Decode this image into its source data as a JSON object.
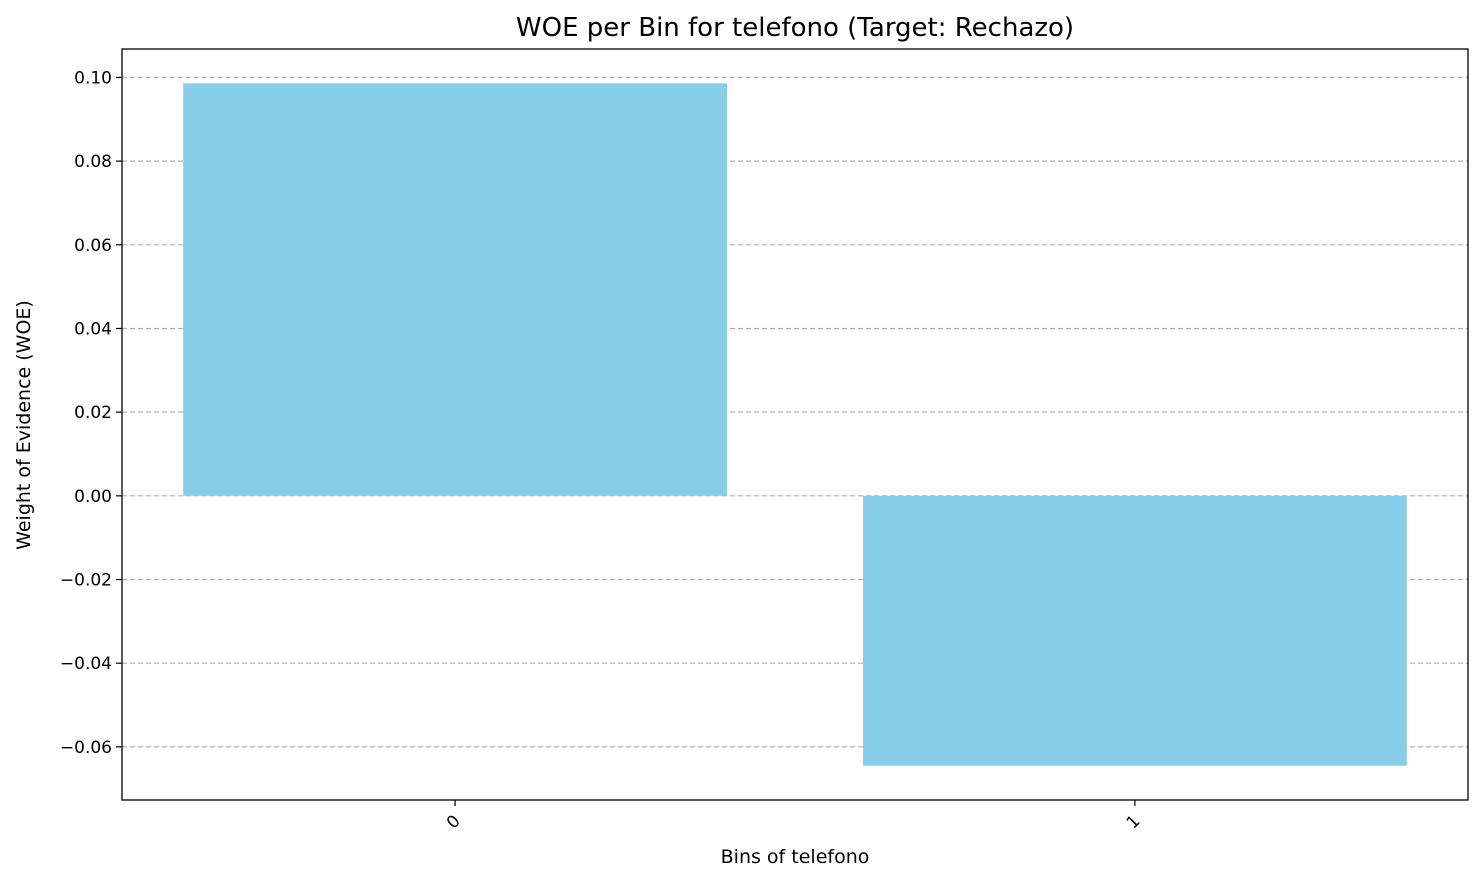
{
  "chart_data": {
    "type": "bar",
    "title": "WOE per Bin for telefono (Target: Rechazo)",
    "xlabel": "Bins of telefono",
    "ylabel": "Weight of Evidence (WOE)",
    "categories": [
      "0",
      "1"
    ],
    "values": [
      0.0986,
      -0.0645
    ],
    "ylim": [
      -0.0727,
      0.1068
    ],
    "yticks": [
      -0.06,
      -0.04,
      -0.02,
      0.0,
      0.02,
      0.04,
      0.06,
      0.08,
      0.1
    ],
    "ytick_labels": [
      "−0.06",
      "−0.04",
      "−0.02",
      "0.00",
      "0.02",
      "0.04",
      "0.06",
      "0.08",
      "0.10"
    ],
    "grid": "y-dashed",
    "bar_color": "#87ceeb",
    "grid_color": "#b0b0b0"
  }
}
